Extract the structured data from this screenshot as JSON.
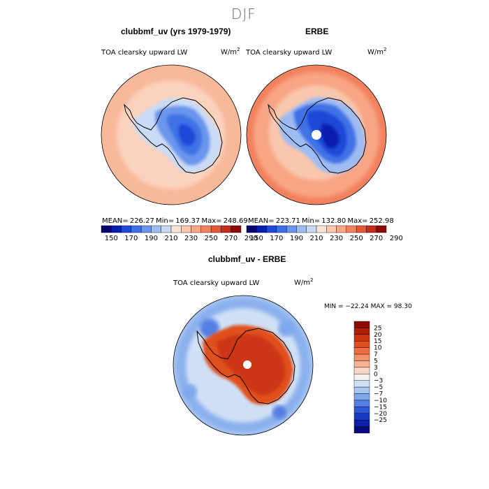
{
  "page_title": "DJF",
  "panels": {
    "model": {
      "title": "clubbmf_uv (yrs 1979-1979)",
      "subtitle": "TOA clearsky upward LW",
      "units": "W/m",
      "units_exp": "2",
      "stats": "MEAN= 226.27   Min= 169.37   Max= 248.69"
    },
    "obs": {
      "title": "ERBE",
      "subtitle": "TOA clearsky upward LW",
      "units": "W/m",
      "units_exp": "2",
      "stats": "MEAN= 223.71   Min= 132.80   Max= 252.98"
    },
    "diff": {
      "title": "clubbmf_uv - ERBE",
      "subtitle": "TOA clearsky upward LW",
      "units": "W/m",
      "units_exp": "2",
      "stats": "MIN = −22.24  MAX =  98.30"
    }
  },
  "colorbar_abs": {
    "labels": [
      "150",
      "170",
      "190",
      "210",
      "230",
      "250",
      "270",
      "290"
    ],
    "colors": [
      "#08006e",
      "#0a1fb0",
      "#1f4ad8",
      "#3f72e6",
      "#6b96ee",
      "#9cbcf3",
      "#c9dbf6",
      "#f6e3d6",
      "#f9c7ad",
      "#f7a585",
      "#f2815e",
      "#e6573a",
      "#c42e1a",
      "#8c0c05"
    ]
  },
  "colorbar_diff": {
    "labels": [
      "25",
      "20",
      "15",
      "10",
      "7",
      "5",
      "3",
      "0",
      "−3",
      "−5",
      "−7",
      "−10",
      "−15",
      "−20",
      "−25"
    ],
    "colors": [
      "#8c0c05",
      "#b01e0c",
      "#cc3514",
      "#e0501e",
      "#ef6d3e",
      "#f5906a",
      "#f8b394",
      "#f9d6c3",
      "#f2f2f2",
      "#cfe0f6",
      "#a8c6f1",
      "#7fa7ec",
      "#557fe4",
      "#2f58da",
      "#173ac8",
      "#0c1fa8",
      "#050a7e"
    ]
  }
}
